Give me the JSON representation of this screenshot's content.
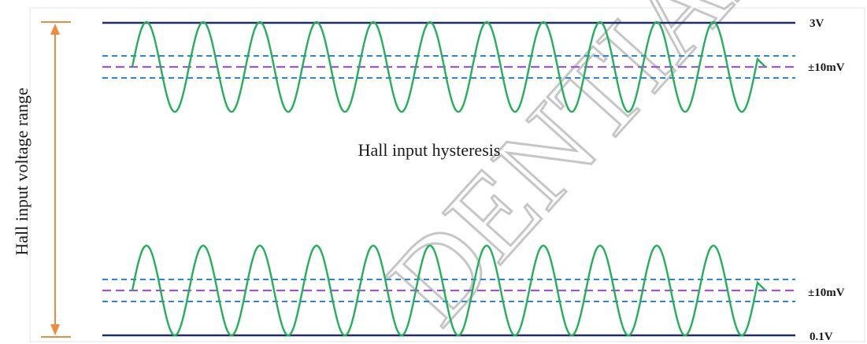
{
  "axis_title": "Hall input voltage range",
  "center_title": "Hall input hysteresis",
  "labels": {
    "top_rail": "3V",
    "top_band": "±10mV",
    "bottom_band": "±10mV",
    "bottom_rail": "0.1V"
  },
  "watermark": "DENTIAL",
  "colors": {
    "rail": "#1f2d6b",
    "band_edge": "#2f86d6",
    "band_center": "#9b59d0",
    "wave": "#22b05a",
    "arrow": "#f08a3c",
    "watermark": "#bdbdbd"
  }
}
